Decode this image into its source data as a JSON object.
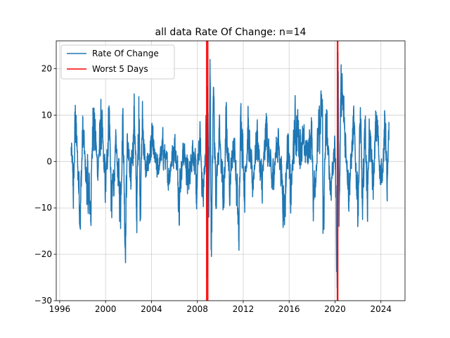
{
  "chart_data": {
    "type": "line",
    "title": "all data Rate Of Change: n=14",
    "xlabel": "",
    "ylabel": "",
    "xlim": [
      1995.7,
      2026.1
    ],
    "ylim": [
      -30,
      26
    ],
    "x_ticks": [
      1996,
      2000,
      2004,
      2008,
      2012,
      2016,
      2020,
      2024
    ],
    "y_ticks": [
      -30,
      -20,
      -10,
      0,
      10,
      20
    ],
    "grid": true,
    "legend": {
      "placement": "top-left",
      "entries": [
        {
          "label": "Rate Of Change",
          "color": "#1f77b4"
        },
        {
          "label": "Worst 5 Days",
          "color": "#ff0000"
        }
      ]
    },
    "series": [
      {
        "name": "Rate Of Change",
        "color": "#1f77b4",
        "x_start": 1997.0,
        "x_end": 2024.7,
        "keypoints": [
          [
            1997.0,
            3
          ],
          [
            1997.2,
            -7
          ],
          [
            1997.35,
            10
          ],
          [
            1997.6,
            -3
          ],
          [
            1997.8,
            -10.5
          ],
          [
            1998.0,
            7
          ],
          [
            1998.3,
            -4
          ],
          [
            1998.7,
            -10
          ],
          [
            1998.9,
            11.5
          ],
          [
            1999.3,
            -2
          ],
          [
            1999.6,
            8
          ],
          [
            2000.0,
            -6
          ],
          [
            2000.3,
            12
          ],
          [
            2000.5,
            -10.5
          ],
          [
            2000.9,
            3
          ],
          [
            2001.3,
            -9
          ],
          [
            2001.5,
            11
          ],
          [
            2001.7,
            -18
          ],
          [
            2001.9,
            6
          ],
          [
            2002.2,
            -6
          ],
          [
            2002.5,
            12
          ],
          [
            2002.7,
            -12
          ],
          [
            2002.9,
            14
          ],
          [
            2003.0,
            -10
          ],
          [
            2003.2,
            9
          ],
          [
            2003.5,
            -3
          ],
          [
            2004.0,
            4
          ],
          [
            2004.5,
            -2
          ],
          [
            2005.0,
            3
          ],
          [
            2005.5,
            -3
          ],
          [
            2006.0,
            4
          ],
          [
            2006.4,
            -6
          ],
          [
            2006.8,
            3
          ],
          [
            2007.2,
            -5
          ],
          [
            2007.6,
            4
          ],
          [
            2007.9,
            -7
          ],
          [
            2008.2,
            5
          ],
          [
            2008.5,
            -8
          ],
          [
            2008.75,
            6
          ],
          [
            2008.85,
            -25
          ],
          [
            2008.9,
            16
          ],
          [
            2009.0,
            -12
          ],
          [
            2009.1,
            22
          ],
          [
            2009.2,
            -19
          ],
          [
            2009.4,
            16
          ],
          [
            2009.6,
            -6
          ],
          [
            2009.9,
            5
          ],
          [
            2010.3,
            -9
          ],
          [
            2010.5,
            8
          ],
          [
            2010.8,
            -4
          ],
          [
            2011.2,
            5
          ],
          [
            2011.6,
            -16.5
          ],
          [
            2011.8,
            12.5
          ],
          [
            2012.1,
            -6
          ],
          [
            2012.4,
            7
          ],
          [
            2012.8,
            -5
          ],
          [
            2013.2,
            6
          ],
          [
            2013.6,
            -6
          ],
          [
            2014.0,
            7
          ],
          [
            2014.5,
            -5
          ],
          [
            2015.0,
            5
          ],
          [
            2015.6,
            -10
          ],
          [
            2015.9,
            6
          ],
          [
            2016.1,
            -9
          ],
          [
            2016.5,
            8
          ],
          [
            2017.0,
            4
          ],
          [
            2017.5,
            2
          ],
          [
            2018.0,
            5
          ],
          [
            2018.1,
            -8
          ],
          [
            2018.5,
            4
          ],
          [
            2018.9,
            11
          ],
          [
            2018.95,
            -15.5
          ],
          [
            2019.2,
            8
          ],
          [
            2019.6,
            -5
          ],
          [
            2020.0,
            3
          ],
          [
            2020.2,
            -30
          ],
          [
            2020.25,
            23.5
          ],
          [
            2020.35,
            -12
          ],
          [
            2020.5,
            15
          ],
          [
            2020.8,
            8
          ],
          [
            2021.2,
            -6
          ],
          [
            2021.6,
            7
          ],
          [
            2022.0,
            -9
          ],
          [
            2022.2,
            10
          ],
          [
            2022.4,
            -12.5
          ],
          [
            2022.6,
            9
          ],
          [
            2022.8,
            -8
          ],
          [
            2023.0,
            7
          ],
          [
            2023.3,
            -6
          ],
          [
            2023.6,
            9
          ],
          [
            2024.0,
            -5
          ],
          [
            2024.4,
            8
          ],
          [
            2024.55,
            -8.5
          ],
          [
            2024.7,
            8.5
          ]
        ]
      }
    ],
    "highlights": {
      "name": "Worst 5 Days",
      "color": "#ff0000",
      "x": [
        2008.8,
        2008.85,
        2008.92,
        2020.2,
        2020.25
      ]
    }
  }
}
